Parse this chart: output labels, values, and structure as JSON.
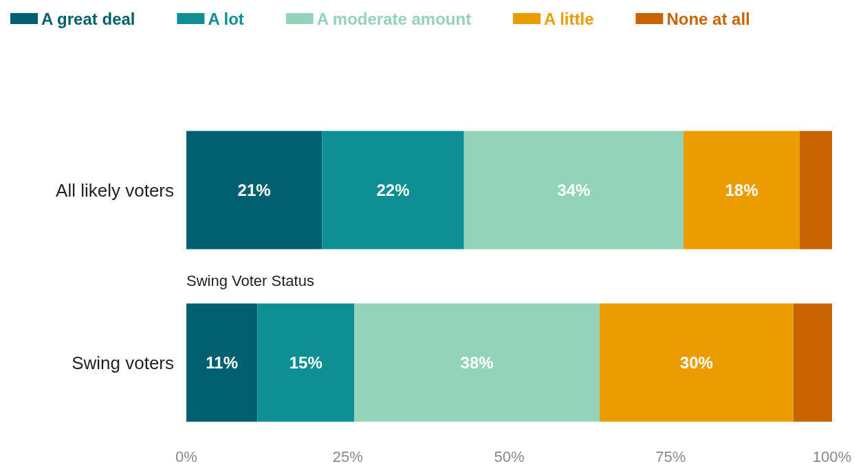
{
  "chart_data": {
    "type": "bar",
    "orientation": "horizontal",
    "stacked": true,
    "categories": [
      "All likely voters",
      "Swing voters"
    ],
    "series": [
      {
        "name": "A great deal",
        "color": "#00606f",
        "values": [
          21,
          11
        ],
        "value_labels": [
          "21%",
          "11%"
        ]
      },
      {
        "name": "A lot",
        "color": "#0d8f94",
        "values": [
          22,
          15
        ],
        "value_labels": [
          "22%",
          "15%"
        ]
      },
      {
        "name": "A moderate amount",
        "color": "#93d3b9",
        "values": [
          34,
          38
        ],
        "value_labels": [
          "34%",
          "38%"
        ]
      },
      {
        "name": "A little",
        "color": "#eb9c00",
        "values": [
          18,
          30
        ],
        "value_labels": [
          "18%",
          "30%"
        ]
      },
      {
        "name": "None at all",
        "color": "#c86400",
        "values": [
          5,
          6
        ],
        "value_labels": [
          null,
          null
        ]
      }
    ],
    "xlim": [
      0,
      100
    ],
    "xticks": [
      {
        "value": 0,
        "label": "0%"
      },
      {
        "value": 25,
        "label": "25%"
      },
      {
        "value": 50,
        "label": "50%"
      },
      {
        "value": 75,
        "label": "75%"
      },
      {
        "value": 100,
        "label": "100%"
      }
    ],
    "annotations": [
      "Swing Voter Status"
    ],
    "legend": "top",
    "grid": false
  }
}
